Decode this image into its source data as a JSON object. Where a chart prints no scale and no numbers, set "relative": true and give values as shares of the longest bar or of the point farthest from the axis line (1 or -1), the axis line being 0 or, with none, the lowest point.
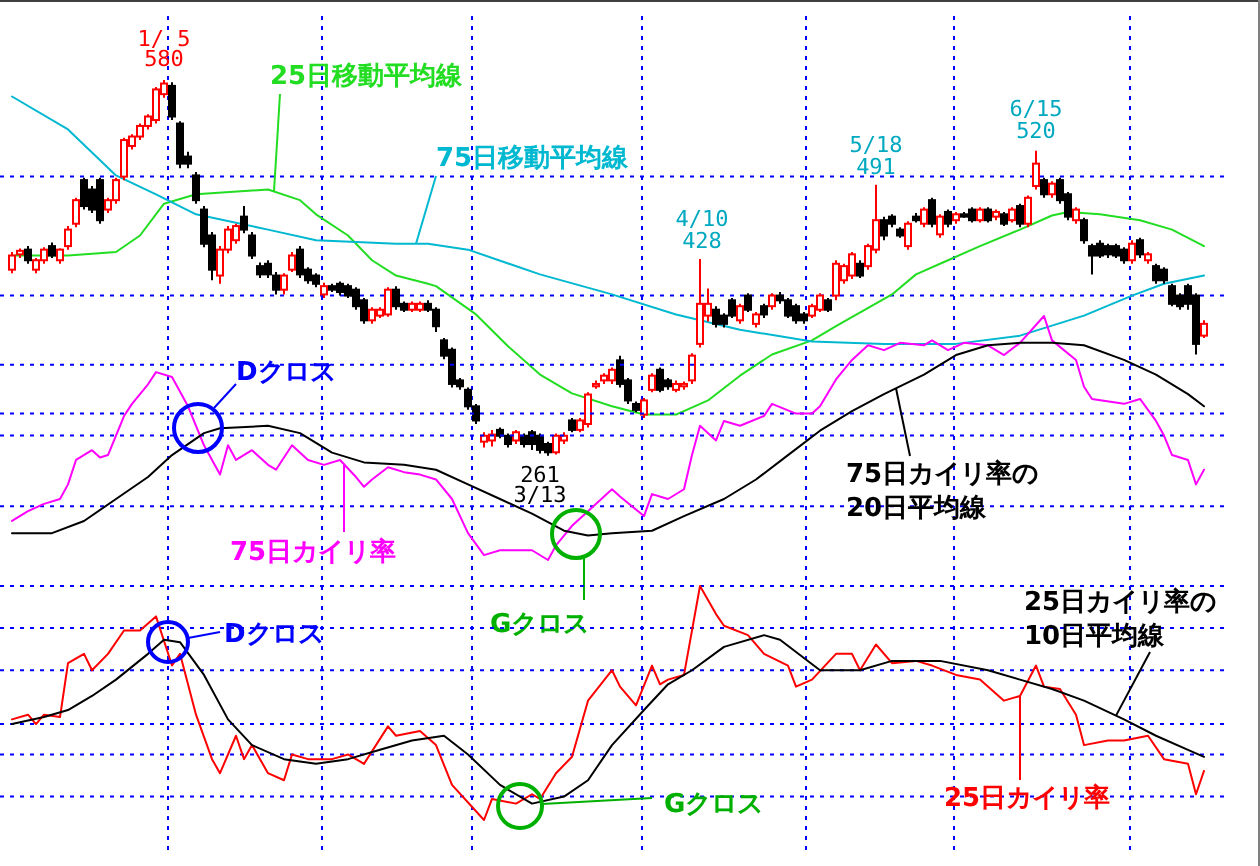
{
  "chart_data": [
    {
      "type": "candlestick",
      "categories": [
        null,
        null,
        null,
        null,
        null,
        null,
        null,
        null,
        null,
        null,
        null,
        null,
        null,
        null,
        null,
        null,
        null,
        null,
        null,
        null,
        null,
        null,
        null,
        null,
        null,
        null,
        null,
        null,
        null,
        null,
        null,
        null,
        null,
        null,
        null,
        null,
        null,
        null,
        null,
        null,
        null,
        null,
        null,
        null,
        null,
        null,
        null,
        null,
        null,
        null,
        null,
        null,
        null,
        null,
        null,
        null,
        null,
        null,
        null,
        null,
        null,
        null,
        null,
        null,
        null,
        null,
        null,
        null,
        null,
        null,
        null,
        null,
        null,
        null,
        null,
        null,
        null,
        null,
        null,
        null,
        null,
        null,
        null,
        null,
        null,
        null,
        null,
        null,
        null,
        null,
        null,
        null,
        null,
        null,
        null,
        null,
        null,
        null,
        null,
        null,
        null,
        null,
        null,
        null,
        null,
        null,
        null,
        null,
        null,
        null,
        null,
        null,
        null,
        null,
        null,
        null,
        null,
        null,
        null,
        null,
        null,
        null,
        null,
        null,
        null,
        null,
        null,
        null,
        null,
        null,
        null,
        null,
        null,
        null,
        null,
        null,
        null,
        null,
        null,
        null,
        null,
        null,
        null,
        null,
        null,
        null,
        null,
        null,
        null,
        null
      ],
      "ohlc": [
        [
          419,
          434,
          416,
          431
        ],
        [
          432,
          437,
          429,
          435
        ],
        [
          436,
          439,
          424,
          427
        ],
        [
          419,
          429,
          416,
          427
        ],
        [
          427,
          438,
          424,
          436
        ],
        [
          439,
          442,
          429,
          431
        ],
        [
          427,
          437,
          424,
          436
        ],
        [
          439,
          456,
          436,
          453
        ],
        [
          458,
          480,
          455,
          478
        ],
        [
          495,
          497,
          470,
          473
        ],
        [
          487,
          490,
          467,
          470
        ],
        [
          495,
          497,
          458,
          461
        ],
        [
          470,
          480,
          467,
          478
        ],
        [
          478,
          497,
          475,
          495
        ],
        [
          498,
          531,
          495,
          529
        ],
        [
          524,
          534,
          521,
          532
        ],
        [
          532,
          543,
          529,
          541
        ],
        [
          541,
          551,
          538,
          549
        ],
        [
          546,
          574,
          543,
          572
        ],
        [
          568,
          580,
          565,
          577
        ],
        [
          575,
          578,
          546,
          549
        ],
        [
          543,
          545,
          505,
          509
        ],
        [
          515,
          519,
          505,
          509
        ],
        [
          499,
          502,
          475,
          478
        ],
        [
          470,
          473,
          438,
          441
        ],
        [
          448,
          451,
          410,
          419
        ],
        [
          414,
          439,
          407,
          436
        ],
        [
          436,
          456,
          433,
          453
        ],
        [
          444,
          458,
          441,
          456
        ],
        [
          464,
          473,
          450,
          453
        ],
        [
          448,
          451,
          428,
          431
        ],
        [
          422,
          425,
          412,
          415
        ],
        [
          424,
          427,
          412,
          415
        ],
        [
          414,
          417,
          398,
          402
        ],
        [
          402,
          416,
          398,
          414
        ],
        [
          419,
          434,
          417,
          431
        ],
        [
          436,
          439,
          412,
          415
        ],
        [
          419,
          421,
          407,
          410
        ],
        [
          414,
          416,
          404,
          407
        ],
        [
          398,
          408,
          395,
          405
        ],
        [
          405,
          407,
          400,
          402
        ],
        [
          407,
          409,
          397,
          400
        ],
        [
          405,
          407,
          395,
          397
        ],
        [
          402,
          404,
          385,
          388
        ],
        [
          393,
          395,
          373,
          376
        ],
        [
          376,
          387,
          373,
          385
        ],
        [
          380,
          387,
          378,
          385
        ],
        [
          381,
          404,
          379,
          402
        ],
        [
          402,
          405,
          385,
          388
        ],
        [
          390,
          392,
          383,
          385
        ],
        [
          385,
          392,
          383,
          390
        ],
        [
          385,
          392,
          383,
          390
        ],
        [
          390,
          393,
          383,
          385
        ],
        [
          385,
          387,
          366,
          371
        ],
        [
          359,
          361,
          343,
          346
        ],
        [
          351,
          353,
          319,
          322
        ],
        [
          325,
          327,
          317,
          320
        ],
        [
          317,
          319,
          300,
          303
        ],
        [
          303,
          305,
          288,
          291
        ],
        [
          273,
          281,
          268,
          278
        ],
        [
          274,
          283,
          269,
          279
        ],
        [
          283,
          285,
          276,
          278
        ],
        [
          278,
          280,
          268,
          271
        ],
        [
          274,
          283,
          271,
          281
        ],
        [
          278,
          280,
          268,
          271
        ],
        [
          281,
          283,
          266,
          271
        ],
        [
          278,
          280,
          263,
          266
        ],
        [
          271,
          273,
          261,
          264
        ],
        [
          264,
          280,
          262,
          278
        ],
        [
          274,
          281,
          271,
          278
        ],
        [
          291,
          293,
          281,
          283
        ],
        [
          283,
          293,
          281,
          291
        ],
        [
          288,
          315,
          285,
          313
        ],
        [
          320,
          325,
          318,
          322
        ],
        [
          325,
          331,
          322,
          329
        ],
        [
          325,
          336,
          322,
          334
        ],
        [
          342,
          346,
          319,
          322
        ],
        [
          325,
          327,
          305,
          308
        ],
        [
          305,
          307,
          298,
          300
        ],
        [
          296,
          310,
          293,
          308
        ],
        [
          317,
          331,
          315,
          329
        ],
        [
          334,
          336,
          315,
          317
        ],
        [
          325,
          327,
          317,
          320
        ],
        [
          317,
          325,
          315,
          322
        ],
        [
          320,
          324,
          317,
          322
        ],
        [
          325,
          348,
          322,
          346
        ],
        [
          356,
          428,
          353,
          390
        ],
        [
          380,
          403,
          375,
          390
        ],
        [
          385,
          388,
          370,
          373
        ],
        [
          380,
          382,
          370,
          373
        ],
        [
          393,
          395,
          378,
          380
        ],
        [
          376,
          390,
          373,
          388
        ],
        [
          397,
          399,
          383,
          385
        ],
        [
          373,
          383,
          370,
          381
        ],
        [
          388,
          390,
          378,
          381
        ],
        [
          388,
          399,
          385,
          397
        ],
        [
          397,
          400,
          390,
          393
        ],
        [
          393,
          395,
          378,
          380
        ],
        [
          388,
          390,
          373,
          376
        ],
        [
          381,
          383,
          373,
          376
        ],
        [
          380,
          390,
          378,
          388
        ],
        [
          385,
          399,
          383,
          397
        ],
        [
          393,
          395,
          383,
          385
        ],
        [
          397,
          427,
          393,
          424
        ],
        [
          410,
          424,
          407,
          422
        ],
        [
          414,
          434,
          411,
          432
        ],
        [
          424,
          427,
          412,
          414
        ],
        [
          422,
          441,
          419,
          439
        ],
        [
          436,
          491,
          433,
          461
        ],
        [
          461,
          464,
          444,
          448
        ],
        [
          464,
          466,
          455,
          458
        ],
        [
          453,
          455,
          446,
          448
        ],
        [
          439,
          460,
          436,
          458
        ],
        [
          464,
          467,
          459,
          461
        ],
        [
          458,
          472,
          455,
          470
        ],
        [
          478,
          480,
          455,
          458
        ],
        [
          449,
          466,
          446,
          464
        ],
        [
          468,
          470,
          455,
          458
        ],
        [
          461,
          468,
          458,
          466
        ],
        [
          466,
          468,
          463,
          464
        ],
        [
          470,
          472,
          459,
          461
        ],
        [
          461,
          472,
          459,
          470
        ],
        [
          470,
          472,
          459,
          461
        ],
        [
          464,
          470,
          461,
          468
        ],
        [
          466,
          468,
          456,
          458
        ],
        [
          461,
          472,
          459,
          470
        ],
        [
          473,
          475,
          455,
          458
        ],
        [
          458,
          482,
          455,
          480
        ],
        [
          490,
          520,
          487,
          509
        ],
        [
          495,
          497,
          480,
          483
        ],
        [
          483,
          494,
          480,
          492
        ],
        [
          495,
          497,
          475,
          478
        ],
        [
          483,
          485,
          461,
          464
        ],
        [
          461,
          472,
          458,
          470
        ],
        [
          461,
          463,
          441,
          444
        ],
        [
          439,
          441,
          415,
          431
        ],
        [
          441,
          444,
          429,
          431
        ],
        [
          439,
          441,
          429,
          432
        ],
        [
          439,
          441,
          429,
          431
        ],
        [
          436,
          438,
          424,
          427
        ],
        [
          427,
          444,
          424,
          441
        ],
        [
          444,
          446,
          429,
          432
        ],
        [
          427,
          434,
          424,
          432
        ],
        [
          422,
          424,
          407,
          410
        ],
        [
          419,
          421,
          407,
          410
        ],
        [
          405,
          407,
          388,
          390
        ],
        [
          397,
          399,
          385,
          388
        ],
        [
          405,
          407,
          385,
          390
        ],
        [
          397,
          399,
          347,
          356
        ],
        [
          363,
          376,
          361,
          373
        ]
      ],
      "series": [
        {
          "name": "25日移動平均線",
          "type": "line",
          "color": "#22dd22",
          "values": [
            431,
            null,
            null,
            null,
            null,
            null,
            null,
            431,
            null,
            null,
            null,
            null,
            null,
            434,
            null,
            null,
            448,
            null,
            null,
            475,
            null,
            null,
            null,
            483,
            null,
            null,
            null,
            null,
            null,
            null,
            null,
            null,
            487,
            null,
            null,
            null,
            478,
            null,
            466,
            null,
            null,
            null,
            448,
            null,
            null,
            427,
            null,
            null,
            414,
            null,
            null,
            null,
            407,
            405,
            null,
            null,
            null,
            null,
            381,
            null,
            null,
            null,
            354,
            null,
            null,
            null,
            330,
            null,
            null,
            null,
            314,
            null,
            null,
            null,
            null,
            303,
            null,
            null,
            null,
            296,
            null,
            null,
            null,
            296,
            null,
            null,
            null,
            308,
            null,
            null,
            null,
            329,
            null,
            null,
            null,
            347,
            null,
            null,
            null,
            null,
            359,
            null,
            null,
            371,
            null,
            null,
            null,
            null,
            null,
            null,
            398,
            null,
            null,
            415,
            null,
            null,
            null,
            427,
            null,
            null,
            null,
            439,
            null,
            null,
            null,
            null,
            453,
            null,
            null,
            null,
            465,
            null,
            468,
            null,
            null,
            null,
            466,
            null,
            null,
            null,
            null,
            461,
            null,
            null,
            null,
            453,
            null,
            null,
            null,
            439
          ]
        },
        {
          "name": "75日移動平均線",
          "type": "line",
          "color": "#00b8d0",
          "values": [
            566,
            null,
            null,
            null,
            null,
            null,
            null,
            538,
            null,
            null,
            null,
            null,
            null,
            499,
            null,
            null,
            null,
            null,
            483,
            null,
            null,
            null,
            null,
            466,
            null,
            null,
            null,
            null,
            null,
            null,
            null,
            null,
            453,
            null,
            null,
            null,
            null,
            null,
            444,
            null,
            null,
            null,
            null,
            null,
            null,
            null,
            null,
            null,
            441,
            null,
            null,
            null,
            441,
            null,
            null,
            null,
            null,
            436,
            null,
            null,
            null,
            null,
            null,
            null,
            null,
            null,
            415,
            null,
            null,
            null,
            null,
            null,
            null,
            null,
            null,
            398,
            null,
            null,
            null,
            null,
            null,
            null,
            null,
            381,
            null,
            null,
            null,
            null,
            null,
            null,
            null,
            368,
            null,
            null,
            null,
            null,
            null,
            null,
            null,
            null,
            358,
            null,
            null,
            null,
            null,
            null,
            null,
            null,
            null,
            356,
            null,
            null,
            null,
            null,
            null,
            null,
            null,
            null,
            356,
            null,
            null,
            null,
            null,
            null,
            null,
            null,
            363,
            null,
            null,
            null,
            null,
            null,
            null,
            null,
            380,
            null,
            null,
            null,
            null,
            null,
            397,
            null,
            null,
            null,
            407,
            null,
            null,
            null,
            null,
            414
          ]
        }
      ],
      "annotations": [
        "1/ 5\n580",
        "4/10\n428",
        "5/18\n491",
        "6/15\n520",
        "261\n3/13"
      ],
      "ref_lines": [
        {
          "axis": "y",
          "value": 498,
          "color": "#0000ff",
          "line_style": "dotted"
        },
        {
          "axis": "y",
          "value": 397,
          "color": "#0000ff",
          "line_style": "dotted"
        }
      ]
    },
    {
      "type": "line",
      "relative": true,
      "categories": [
        null,
        null,
        null,
        null,
        null,
        null,
        null,
        null,
        null,
        null,
        null,
        null,
        null,
        null,
        null,
        null,
        null,
        null,
        null,
        null,
        null,
        null,
        null,
        null,
        null,
        null,
        null,
        null,
        null,
        null,
        null,
        null,
        null,
        null,
        null,
        null,
        null,
        null,
        null,
        null,
        null,
        null,
        null,
        null,
        null,
        null,
        null,
        null,
        null,
        null,
        null,
        null,
        null,
        null,
        null,
        null,
        null,
        null,
        null,
        null,
        null,
        null,
        null,
        null,
        null,
        null,
        null,
        null,
        null,
        null,
        null,
        null,
        null,
        null,
        null,
        null,
        null,
        null,
        null,
        null,
        null,
        null,
        null,
        null,
        null,
        null,
        null,
        null,
        null,
        null,
        null,
        null,
        null,
        null,
        null,
        null,
        null,
        null,
        null,
        null,
        null,
        null,
        null,
        null,
        null,
        null,
        null,
        null,
        null,
        null,
        null,
        null,
        null,
        null,
        null,
        null,
        null,
        null,
        null,
        null,
        null,
        null,
        null,
        null,
        null,
        null,
        null,
        null,
        null,
        null,
        null,
        null,
        null,
        null,
        null,
        null,
        null,
        null,
        null,
        null,
        null,
        null,
        null,
        null,
        null,
        null,
        null,
        null,
        null,
        null
      ],
      "series": [
        {
          "name": "75日カイリ率",
          "color": "#ff00ff",
          "values": [
            0.16,
            null,
            0.2,
            null,
            0.23,
            null,
            0.25,
            0.31,
            0.41,
            null,
            0.45,
            0.42,
            0.43,
            null,
            0.59,
            0.64,
            null,
            0.72,
            0.77,
            null,
            0.75,
            null,
            0.63,
            null,
            0.47,
            null,
            0.35,
            0.47,
            0.41,
            null,
            0.45,
            null,
            0.39,
            0.37,
            null,
            0.47,
            null,
            0.41,
            null,
            0.39,
            null,
            0.41,
            null,
            0.34,
            0.3,
            0.33,
            null,
            0.38,
            null,
            0.36,
            null,
            0.35,
            null,
            0.33,
            null,
            0.25,
            null,
            0.11,
            null,
            0.02,
            null,
            0.04,
            null,
            0.04,
            null,
            0.04,
            null,
            0,
            0.06,
            null,
            0.14,
            null,
            0.2,
            null,
            null,
            0.29,
            0.26,
            null,
            null,
            0.18,
            0.27,
            null,
            0.25,
            null,
            0.29,
            0.43,
            0.55,
            null,
            0.49,
            0.57,
            null,
            0.55,
            null,
            null,
            0.59,
            0.64,
            null,
            null,
            0.6,
            null,
            0.6,
            0.63,
            null,
            0.74,
            0.78,
            0.82,
            null,
            0.88,
            null,
            0.86,
            null,
            0.89,
            null,
            null,
            0.88,
            0.9,
            null,
            0.86,
            null,
            0.89,
            null,
            null,
            0.88,
            null,
            0.84,
            null,
            0.89,
            null,
            null,
            1,
            0.9,
            null,
            null,
            0.82,
            0.71,
            0.66,
            null,
            null,
            null,
            0.64,
            null,
            0.66,
            null,
            0.57,
            0.51,
            0.43,
            null,
            0.41,
            0.31,
            0.37
          ]
        },
        {
          "name": "75日カイリ率の\n20日平均線",
          "color": "#000000",
          "values": [
            0.11,
            null,
            null,
            null,
            null,
            0.11,
            null,
            null,
            null,
            0.16,
            null,
            null,
            null,
            0.25,
            null,
            null,
            null,
            0.34,
            null,
            null,
            0.43,
            null,
            null,
            null,
            0.52,
            null,
            0.54,
            null,
            null,
            null,
            null,
            null,
            0.55,
            null,
            null,
            null,
            0.52,
            null,
            null,
            null,
            0.44,
            null,
            null,
            null,
            0.4,
            null,
            null,
            null,
            null,
            0.39,
            null,
            null,
            null,
            0.37,
            null,
            null,
            null,
            0.31,
            null,
            null,
            null,
            0.25,
            null,
            null,
            null,
            0.19,
            null,
            null,
            null,
            0.12,
            null,
            null,
            0.1,
            null,
            null,
            0.11,
            null,
            null,
            null,
            null,
            0.12,
            null,
            null,
            null,
            0.18,
            null,
            null,
            null,
            null,
            0.25,
            null,
            null,
            null,
            0.33,
            null,
            null,
            null,
            0.43,
            null,
            null,
            null,
            0.53,
            null,
            null,
            null,
            0.61,
            null,
            null,
            null,
            0.68,
            null,
            null,
            null,
            null,
            0.76,
            null,
            null,
            null,
            0.84,
            null,
            null,
            null,
            0.88,
            null,
            null,
            null,
            0.89,
            null,
            null,
            null,
            0.89,
            null,
            null,
            null,
            0.88,
            null,
            null,
            null,
            null,
            0.82,
            null,
            null,
            null,
            0.76,
            null,
            null,
            null,
            0.68,
            null,
            0.63
          ]
        }
      ],
      "annotations": [
        "Dクロス",
        "Gクロス"
      ],
      "ref_lines": [
        {
          "axis": "y",
          "value": 0.8,
          "color": "#0000ff",
          "line_style": "dotted"
        },
        {
          "axis": "y",
          "value": 0.6,
          "color": "#0000ff",
          "line_style": "dotted"
        },
        {
          "axis": "y",
          "value": 0.51,
          "color": "#0000ff",
          "line_style": "dotted"
        },
        {
          "axis": "y",
          "value": 0.22,
          "color": "#0000ff",
          "line_style": "dotted"
        }
      ]
    },
    {
      "type": "line",
      "relative": true,
      "categories": [
        null,
        null,
        null,
        null,
        null,
        null,
        null,
        null,
        null,
        null,
        null,
        null,
        null,
        null,
        null,
        null,
        null,
        null,
        null,
        null,
        null,
        null,
        null,
        null,
        null,
        null,
        null,
        null,
        null,
        null,
        null,
        null,
        null,
        null,
        null,
        null,
        null,
        null,
        null,
        null,
        null,
        null,
        null,
        null,
        null,
        null,
        null,
        null,
        null,
        null,
        null,
        null,
        null,
        null,
        null,
        null,
        null,
        null,
        null,
        null,
        null,
        null,
        null,
        null,
        null,
        null,
        null,
        null,
        null,
        null,
        null,
        null,
        null,
        null,
        null,
        null,
        null,
        null,
        null,
        null,
        null,
        null,
        null,
        null,
        null,
        null,
        null,
        null,
        null,
        null,
        null,
        null,
        null,
        null,
        null,
        null,
        null,
        null,
        null,
        null,
        null,
        null,
        null,
        null,
        null,
        null,
        null,
        null,
        null,
        null,
        null,
        null,
        null,
        null,
        null,
        null,
        null,
        null,
        null,
        null,
        null,
        null,
        null,
        null,
        null,
        null,
        null,
        null,
        null,
        null,
        null,
        null,
        null,
        null,
        null,
        null,
        null,
        null,
        null,
        null,
        null,
        null,
        null,
        null,
        null,
        null,
        null,
        null,
        null,
        null
      ],
      "series": [
        {
          "name": "25日カイリ率",
          "color": "#ff0000",
          "values": [
            0.43,
            null,
            0.45,
            0.41,
            0.45,
            null,
            0.44,
            0.67,
            null,
            0.71,
            0.64,
            null,
            0.71,
            null,
            0.81,
            null,
            0.81,
            null,
            0.87,
            null,
            0.66,
            0.71,
            null,
            0.45,
            null,
            0.26,
            0.2,
            null,
            0.36,
            0.26,
            0.32,
            null,
            0.2,
            null,
            0.17,
            0.28,
            null,
            0.26,
            null,
            null,
            0.26,
            null,
            0.28,
            null,
            0.24,
            null,
            null,
            0.4,
            0.36,
            null,
            null,
            0.38,
            null,
            0.32,
            null,
            0.15,
            null,
            null,
            null,
            0,
            0.09,
            null,
            null,
            0.07,
            null,
            0.11,
            0.09,
            null,
            0.2,
            null,
            0.27,
            null,
            0.51,
            null,
            null,
            0.64,
            0.57,
            null,
            0.49,
            null,
            0.66,
            0.58,
            0.6,
            null,
            0.62,
            null,
            1,
            null,
            0.88,
            0.83,
            null,
            null,
            0.79,
            null,
            0.71,
            null,
            null,
            0.66,
            0.57,
            null,
            0.6,
            null,
            null,
            0.71,
            null,
            0.71,
            0.64,
            null,
            0.75,
            null,
            0.67,
            null,
            null,
            0.68,
            null,
            0.66,
            null,
            null,
            0.62,
            null,
            null,
            0.6,
            null,
            null,
            0.51,
            null,
            0.53,
            null,
            0.66,
            0.57,
            null,
            0.56,
            null,
            0.45,
            0.32,
            null,
            null,
            0.34,
            null,
            0.34,
            null,
            null,
            0.36,
            null,
            0.26,
            null,
            null,
            0.24,
            0.11,
            0.21
          ]
        },
        {
          "name": "25日カイリ率の\n10日平均線",
          "color": "#000000",
          "values": [
            0.41,
            null,
            null,
            null,
            0.44,
            null,
            null,
            0.47,
            null,
            null,
            0.53,
            null,
            null,
            0.6,
            null,
            null,
            null,
            0.71,
            null,
            0.77,
            null,
            0.76,
            null,
            null,
            0.62,
            null,
            null,
            0.43,
            null,
            null,
            0.32,
            null,
            null,
            null,
            0.26,
            null,
            null,
            null,
            0.24,
            null,
            null,
            null,
            0.26,
            null,
            null,
            null,
            0.3,
            null,
            null,
            null,
            0.34,
            null,
            null,
            null,
            0.36,
            null,
            null,
            0.28,
            null,
            null,
            null,
            0.15,
            null,
            null,
            null,
            0.07,
            null,
            null,
            null,
            0.1,
            null,
            null,
            0.17,
            null,
            null,
            0.32,
            null,
            null,
            null,
            0.47,
            null,
            null,
            0.58,
            null,
            null,
            0.64,
            null,
            null,
            null,
            0.74,
            null,
            null,
            null,
            null,
            0.79,
            null,
            0.77,
            null,
            null,
            null,
            null,
            0.64,
            null,
            null,
            null,
            null,
            0.64,
            null,
            null,
            null,
            0.68,
            null,
            null,
            null,
            null,
            null,
            0.68,
            null,
            null,
            null,
            null,
            null,
            0.64,
            null,
            null,
            null,
            0.6,
            null,
            null,
            null,
            0.56,
            null,
            null,
            null,
            0.51,
            null,
            null,
            null,
            null,
            0.43,
            null,
            null,
            null,
            0.36,
            null,
            null,
            null,
            0.3,
            null,
            0.27
          ]
        }
      ],
      "annotations": [
        "Dクロス",
        "Gクロス"
      ],
      "ref_lines": [
        {
          "axis": "y",
          "value": 1,
          "color": "#0000ff",
          "line_style": "dotted"
        },
        {
          "axis": "y",
          "value": 0.82,
          "color": "#0000ff",
          "line_style": "dotted"
        },
        {
          "axis": "y",
          "value": 0.64,
          "color": "#0000ff",
          "line_style": "dotted"
        },
        {
          "axis": "y",
          "value": 0.41,
          "color": "#0000ff",
          "line_style": "dotted"
        },
        {
          "axis": "y",
          "value": 0.28,
          "color": "#0000ff",
          "line_style": "dotted"
        },
        {
          "axis": "y",
          "value": 0.1,
          "color": "#0000ff",
          "line_style": "dotted"
        }
      ]
    }
  ]
}
